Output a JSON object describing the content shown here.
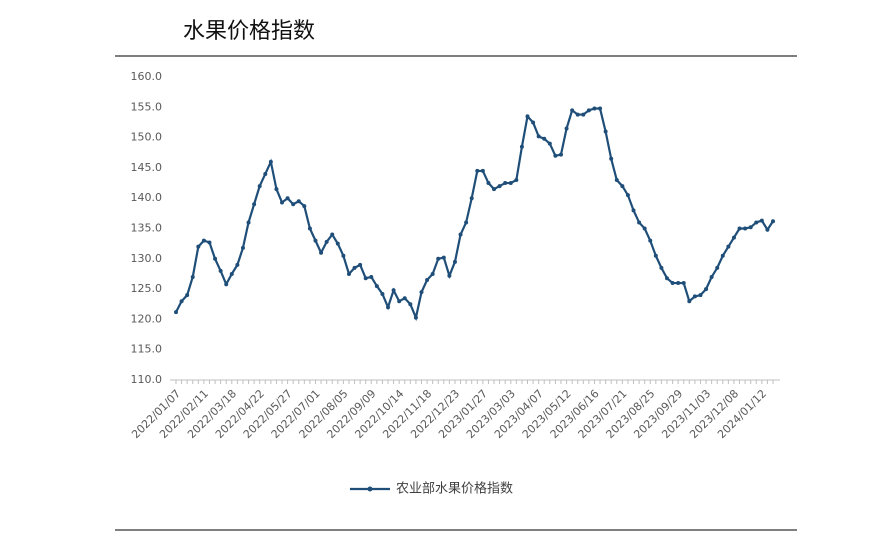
{
  "chart_data": {
    "type": "line",
    "title": "水果价格指数",
    "categories": [
      "2022/01/07",
      null,
      null,
      null,
      null,
      "2022/02/11",
      null,
      null,
      null,
      null,
      "2022/03/18",
      null,
      null,
      null,
      null,
      "2022/04/22",
      null,
      null,
      null,
      null,
      "2022/05/27",
      null,
      null,
      null,
      null,
      "2022/07/01",
      null,
      null,
      null,
      null,
      "2022/08/05",
      null,
      null,
      null,
      null,
      "2022/09/09",
      null,
      null,
      null,
      null,
      "2022/10/14",
      null,
      null,
      null,
      null,
      "2022/11/18",
      null,
      null,
      null,
      null,
      "2022/12/23",
      null,
      null,
      null,
      null,
      "2023/01/27",
      null,
      null,
      null,
      null,
      "2023/03/03",
      null,
      null,
      null,
      null,
      "2023/04/07",
      null,
      null,
      null,
      null,
      "2023/05/12",
      null,
      null,
      null,
      null,
      "2023/06/16",
      null,
      null,
      null,
      null,
      "2023/07/21",
      null,
      null,
      null,
      null,
      "2023/08/25",
      null,
      null,
      null,
      null,
      "2023/09/29",
      null,
      null,
      null,
      null,
      "2023/11/03",
      null,
      null,
      null,
      null,
      "2023/12/08",
      null,
      null,
      null,
      null,
      "2024/01/12",
      null,
      null
    ],
    "series": [
      {
        "name": "农业部水果价格指数",
        "color": "#1f4e79",
        "values": [
          121.2,
          123,
          124,
          127,
          132,
          133,
          132.7,
          130,
          128,
          125.8,
          127.5,
          129,
          131.8,
          136,
          139,
          142,
          144,
          146,
          141.5,
          139.3,
          140,
          139,
          139.5,
          138.7,
          135,
          133,
          131,
          132.8,
          134,
          132.5,
          130.5,
          127.5,
          128.5,
          129,
          126.8,
          127,
          125.5,
          124.2,
          122,
          124.8,
          123,
          123.5,
          122.5,
          120.3,
          124.5,
          126.5,
          127.5,
          130,
          130.2,
          127.2,
          129.5,
          134,
          136,
          140,
          144.5,
          144.5,
          142.5,
          141.5,
          142,
          142.5,
          142.5,
          143,
          148.5,
          153.5,
          152.5,
          150.2,
          149.8,
          149,
          147,
          147.2,
          151.5,
          154.5,
          153.8,
          153.8,
          154.5,
          154.8,
          154.8,
          151,
          146.5,
          143,
          142,
          140.5,
          138,
          136,
          135,
          133,
          130.5,
          128.5,
          126.8,
          126,
          126,
          126,
          123,
          123.8,
          124,
          125,
          127,
          128.5,
          130.5,
          132,
          133.5,
          135,
          135,
          135.2,
          136,
          136.3,
          134.8,
          136.2
        ]
      }
    ],
    "ylim": [
      110,
      160
    ],
    "yticks": [
      {
        "value": 110,
        "label": "110.0"
      },
      {
        "value": 115,
        "label": "115.0"
      },
      {
        "value": 120,
        "label": "120.0"
      },
      {
        "value": 125,
        "label": "125.0"
      },
      {
        "value": 130,
        "label": "130.0"
      },
      {
        "value": 135,
        "label": "135.0"
      },
      {
        "value": 140,
        "label": "140.0"
      },
      {
        "value": 145,
        "label": "145.0"
      },
      {
        "value": 150,
        "label": "150.0"
      },
      {
        "value": 155,
        "label": "155.0"
      },
      {
        "value": 160,
        "label": "160.0"
      }
    ],
    "grid": false,
    "legend": "bottom"
  }
}
